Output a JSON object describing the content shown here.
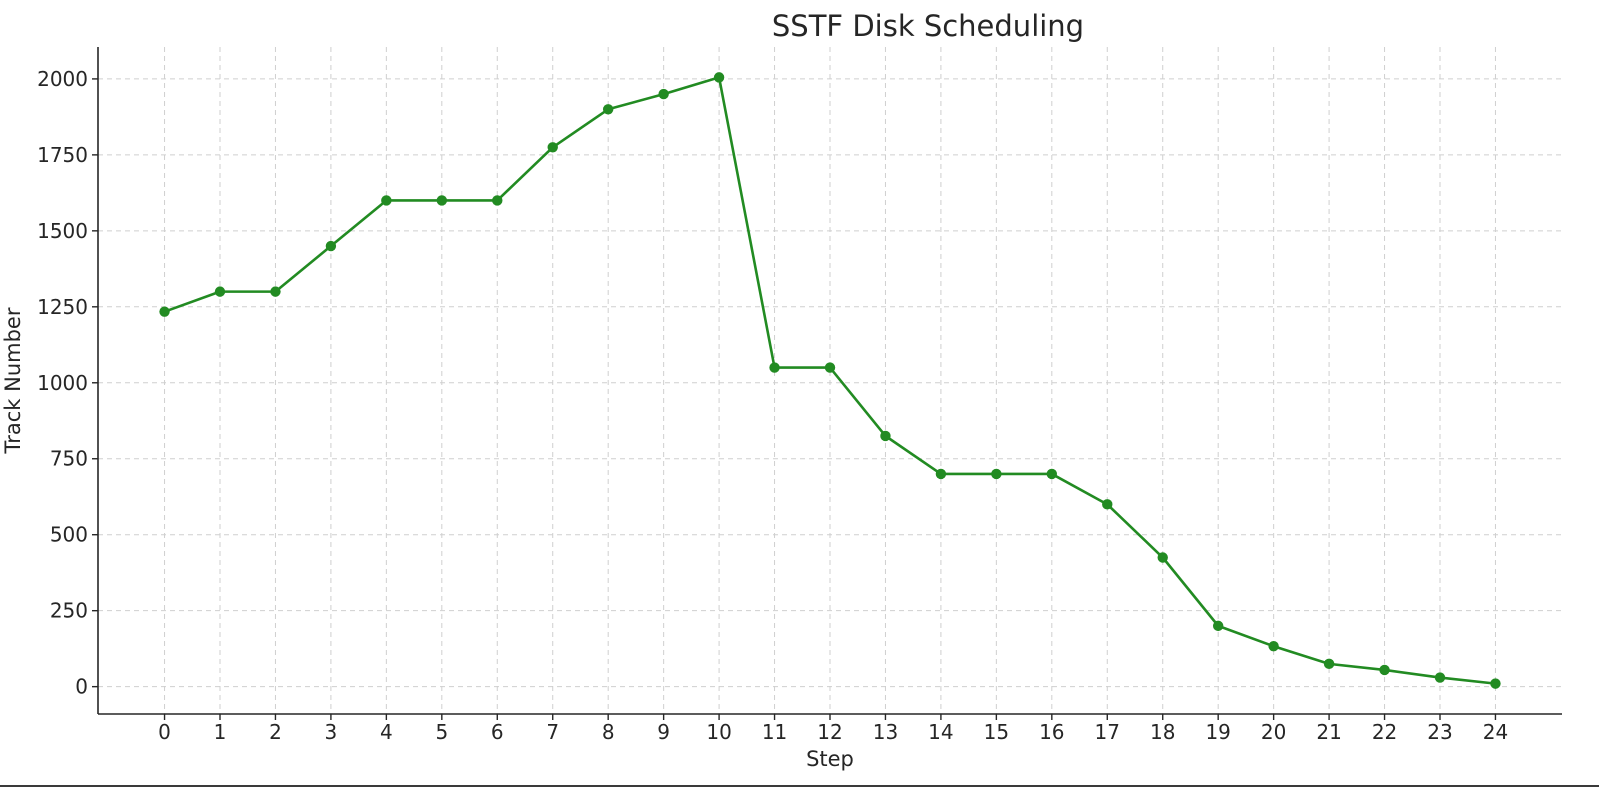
{
  "chart_data": {
    "type": "line",
    "title": "SSTF Disk Scheduling",
    "xlabel": "Step",
    "ylabel": "Track Number",
    "x": [
      0,
      1,
      2,
      3,
      4,
      5,
      6,
      7,
      8,
      9,
      10,
      11,
      12,
      13,
      14,
      15,
      16,
      17,
      18,
      19,
      20,
      21,
      22,
      23,
      24
    ],
    "x_tick_labels": [
      "0",
      "1",
      "2",
      "3",
      "4",
      "5",
      "6",
      "7",
      "8",
      "9",
      "10",
      "11",
      "12",
      "13",
      "14",
      "15",
      "16",
      "17",
      "18",
      "19",
      "20",
      "21",
      "22",
      "23",
      "24"
    ],
    "y_ticks": [
      0,
      250,
      500,
      750,
      1000,
      1250,
      1500,
      1750,
      2000
    ],
    "y_tick_labels": [
      "0",
      "250",
      "500",
      "750",
      "1000",
      "1250",
      "1500",
      "1750",
      "2000"
    ],
    "xlim": [
      -1.2,
      25.2
    ],
    "ylim": [
      -90,
      2105
    ],
    "grid": true,
    "series": [
      {
        "values": [
          1234,
          1300,
          1300,
          1450,
          1600,
          1600,
          1600,
          1775,
          1900,
          1950,
          2005,
          1050,
          1050,
          825,
          700,
          700,
          700,
          600,
          425,
          200,
          133,
          75,
          55,
          30,
          10
        ],
        "color": "#228b22",
        "marker": "circle"
      }
    ]
  }
}
